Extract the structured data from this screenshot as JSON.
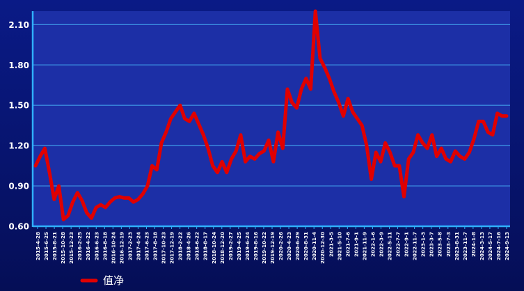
{
  "chart_data": {
    "type": "line",
    "title": "",
    "xlabel": "",
    "ylabel": "",
    "ylim": [
      0.6,
      2.2
    ],
    "y_ticks": [
      "0.60",
      "0.90",
      "1.20",
      "1.50",
      "1.80",
      "2.10"
    ],
    "y_tick_values": [
      0.6,
      0.9,
      1.2,
      1.5,
      1.8,
      2.1
    ],
    "grid": true,
    "legend_position": "bottom-left",
    "colors": {
      "background": "#0a1a86",
      "plot_background": "#1c2fa6",
      "grid": "#3e9be8",
      "axis": "#2fb0ff",
      "series": "#e00000",
      "text": "#ffffff"
    },
    "x_tick_labels": [
      "2015-4-28",
      "2015-6-25",
      "2015-8-21",
      "2015-10-28",
      "2015-12-23",
      "2016-2-25",
      "2016-4-22",
      "2016-6-23",
      "2016-8-18",
      "2016-10-24",
      "2016-12-19",
      "2017-2-23",
      "2017-4-24",
      "2017-6-23",
      "2017-8-18",
      "2017-10-23",
      "2017-12-19",
      "2018-2-22",
      "2018-4-26",
      "2018-6-22",
      "2018-8-17",
      "2018-10-24",
      "2018-12-20",
      "2019-2-27",
      "2019-4-25",
      "2019-6-24",
      "2019-8-16",
      "2019-10-22",
      "2019-12-19",
      "2020-2-26",
      "2020-4-23",
      "2020-6-29",
      "2020-8-31",
      "2020-11-4",
      "2020-12-30",
      "2021-3-5",
      "2021-5-10",
      "2021-7-6",
      "2021-9-1",
      "2021-11-9",
      "2022-1-6",
      "2022-3-9",
      "2022-5-11",
      "2022-7-7",
      "2022-9-1",
      "2022-11-7",
      "2023-1-3",
      "2023-3-7",
      "2023-5-8",
      "2023-7-3",
      "2023-8-31",
      "2023-11-7",
      "2024-1-8",
      "2024-3-13",
      "2024-5-17",
      "2024-7-16",
      "2024-9-13"
    ],
    "series": [
      {
        "name": "值净",
        "values": [
          1.05,
          1.12,
          1.18,
          1.0,
          0.8,
          0.9,
          0.65,
          0.68,
          0.78,
          0.85,
          0.79,
          0.7,
          0.66,
          0.74,
          0.76,
          0.74,
          0.78,
          0.81,
          0.82,
          0.81,
          0.81,
          0.78,
          0.8,
          0.84,
          0.9,
          1.05,
          1.02,
          1.22,
          1.3,
          1.4,
          1.45,
          1.5,
          1.4,
          1.38,
          1.44,
          1.36,
          1.28,
          1.18,
          1.05,
          1.0,
          1.08,
          1.0,
          1.1,
          1.16,
          1.28,
          1.08,
          1.12,
          1.1,
          1.14,
          1.16,
          1.24,
          1.08,
          1.3,
          1.18,
          1.62,
          1.52,
          1.48,
          1.62,
          1.7,
          1.62,
          2.2,
          1.85,
          1.78,
          1.7,
          1.6,
          1.52,
          1.42,
          1.55,
          1.45,
          1.4,
          1.35,
          1.2,
          0.95,
          1.15,
          1.08,
          1.22,
          1.15,
          1.05,
          1.05,
          0.82,
          1.1,
          1.15,
          1.28,
          1.22,
          1.18,
          1.28,
          1.12,
          1.18,
          1.1,
          1.08,
          1.16,
          1.12,
          1.1,
          1.15,
          1.25,
          1.38,
          1.38,
          1.3,
          1.28,
          1.44,
          1.42,
          1.42
        ]
      }
    ]
  }
}
